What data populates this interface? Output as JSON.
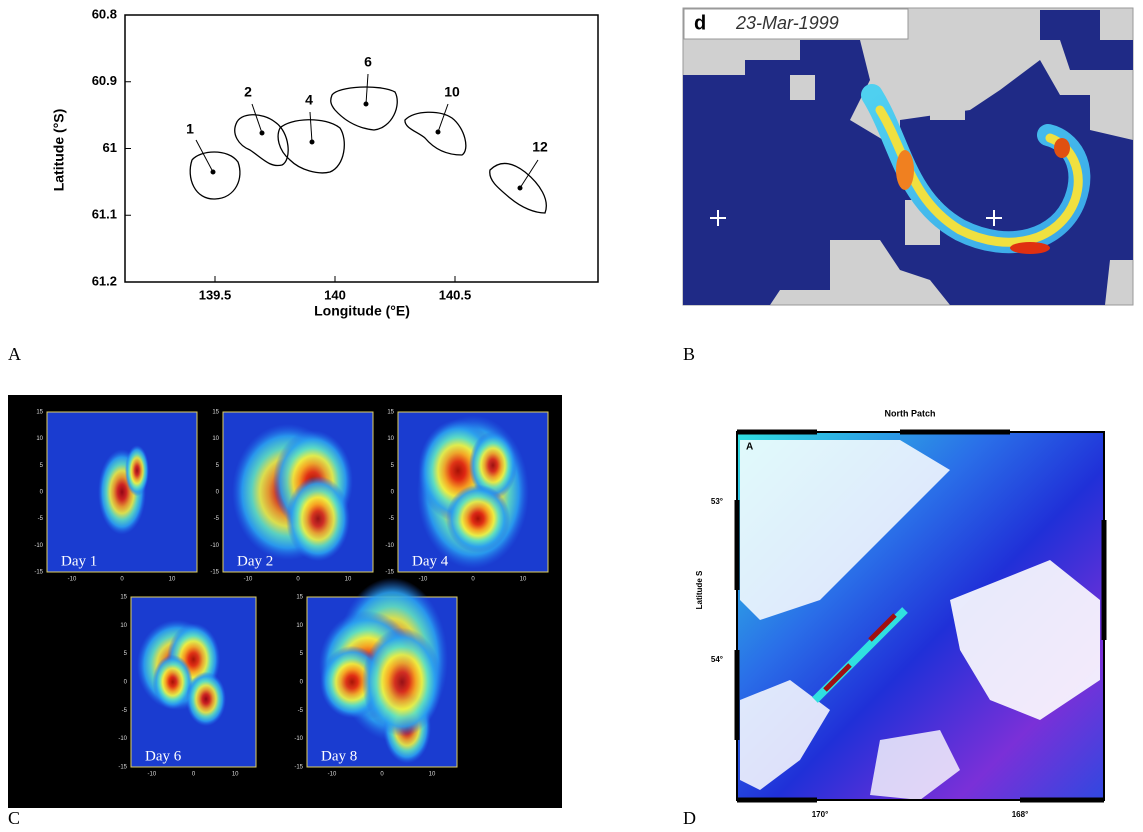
{
  "panels": [
    {
      "letter": "A",
      "y_axis_label": "Latitude (°S)",
      "x_axis_label": "Longitude (°E)",
      "y_ticks": [
        "60.8",
        "60.9",
        "61",
        "61.1",
        "61.2"
      ],
      "x_ticks": [
        "139.5",
        "140",
        "140.5"
      ],
      "contour_labels": [
        "1",
        "2",
        "4",
        "6",
        "10",
        "12"
      ]
    },
    {
      "letter": "B",
      "panel_tag": "d",
      "date": "23-Mar-1999"
    },
    {
      "letter": "C",
      "day_labels": [
        "Day 1",
        "Day 2",
        "Day 4",
        "Day 6",
        "Day 8"
      ],
      "y_ticks": [
        "15",
        "10",
        "5",
        "0",
        "-5",
        "-10",
        "-15"
      ],
      "x_ticks": [
        "-10",
        "0",
        "10"
      ]
    },
    {
      "letter": "D",
      "title": "North Patch",
      "inset_label": "A",
      "y_axis_label": "Latitude S",
      "y_ticks": [
        "53°",
        "54°"
      ],
      "x_ticks": [
        "170°",
        "168°"
      ]
    }
  ]
}
